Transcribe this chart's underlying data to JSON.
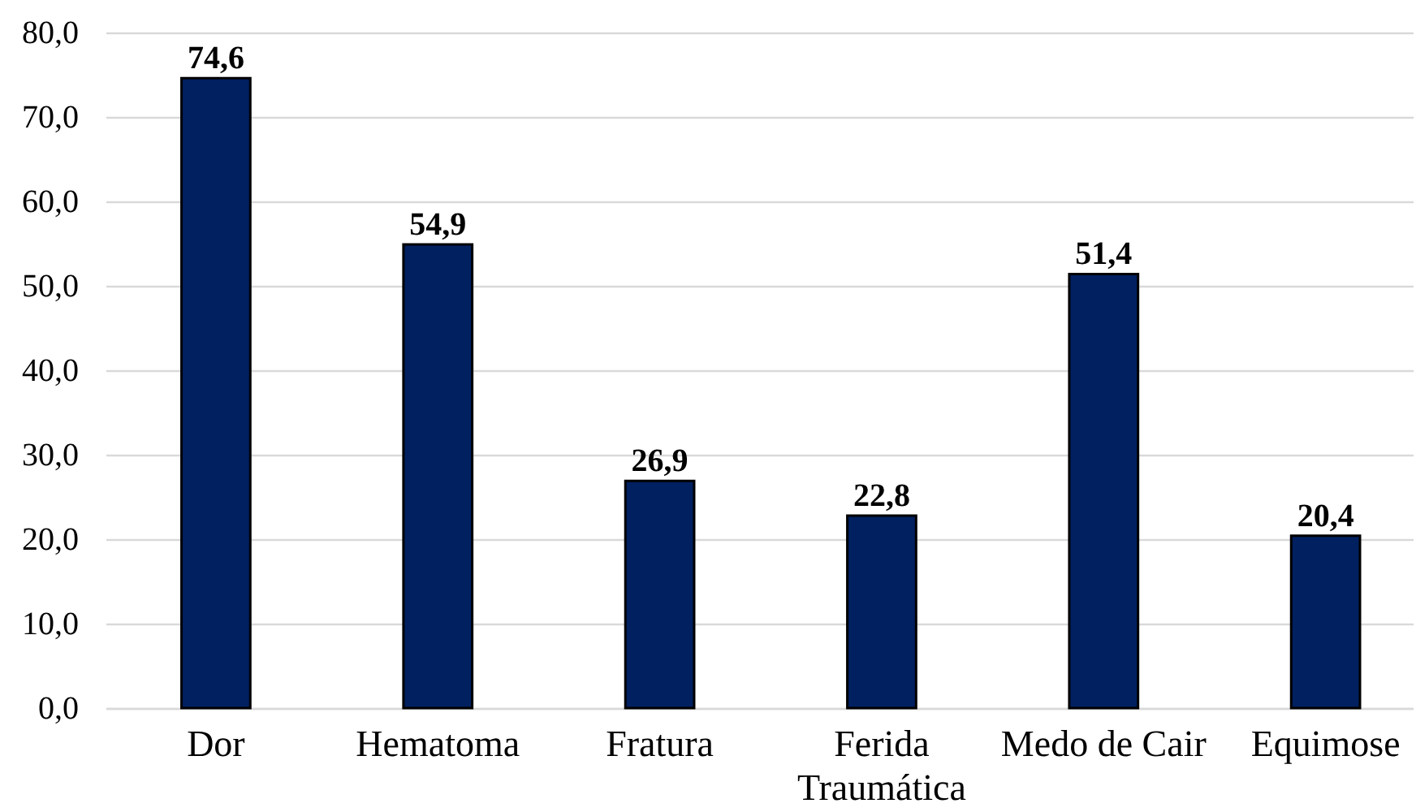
{
  "chart_data": {
    "type": "bar",
    "categories": [
      "Dor",
      "Hematoma",
      "Fratura",
      "Ferida Traumática",
      "Medo de Cair",
      "Equimose"
    ],
    "values": [
      74.6,
      54.9,
      26.9,
      22.8,
      51.4,
      20.4
    ],
    "value_labels": [
      "74,6",
      "54,9",
      "26,9",
      "22,8",
      "51,4",
      "20,4"
    ],
    "color": "#002060",
    "ylim": [
      0,
      80
    ],
    "yticks": [
      {
        "value": 0,
        "label": "0,0"
      },
      {
        "value": 10,
        "label": "10,0"
      },
      {
        "value": 20,
        "label": "20,0"
      },
      {
        "value": 30,
        "label": "30,0"
      },
      {
        "value": 40,
        "label": "40,0"
      },
      {
        "value": 50,
        "label": "50,0"
      },
      {
        "value": 60,
        "label": "60,0"
      },
      {
        "value": 70,
        "label": "70,0"
      },
      {
        "value": 80,
        "label": "80,0"
      }
    ],
    "grid": "y"
  }
}
